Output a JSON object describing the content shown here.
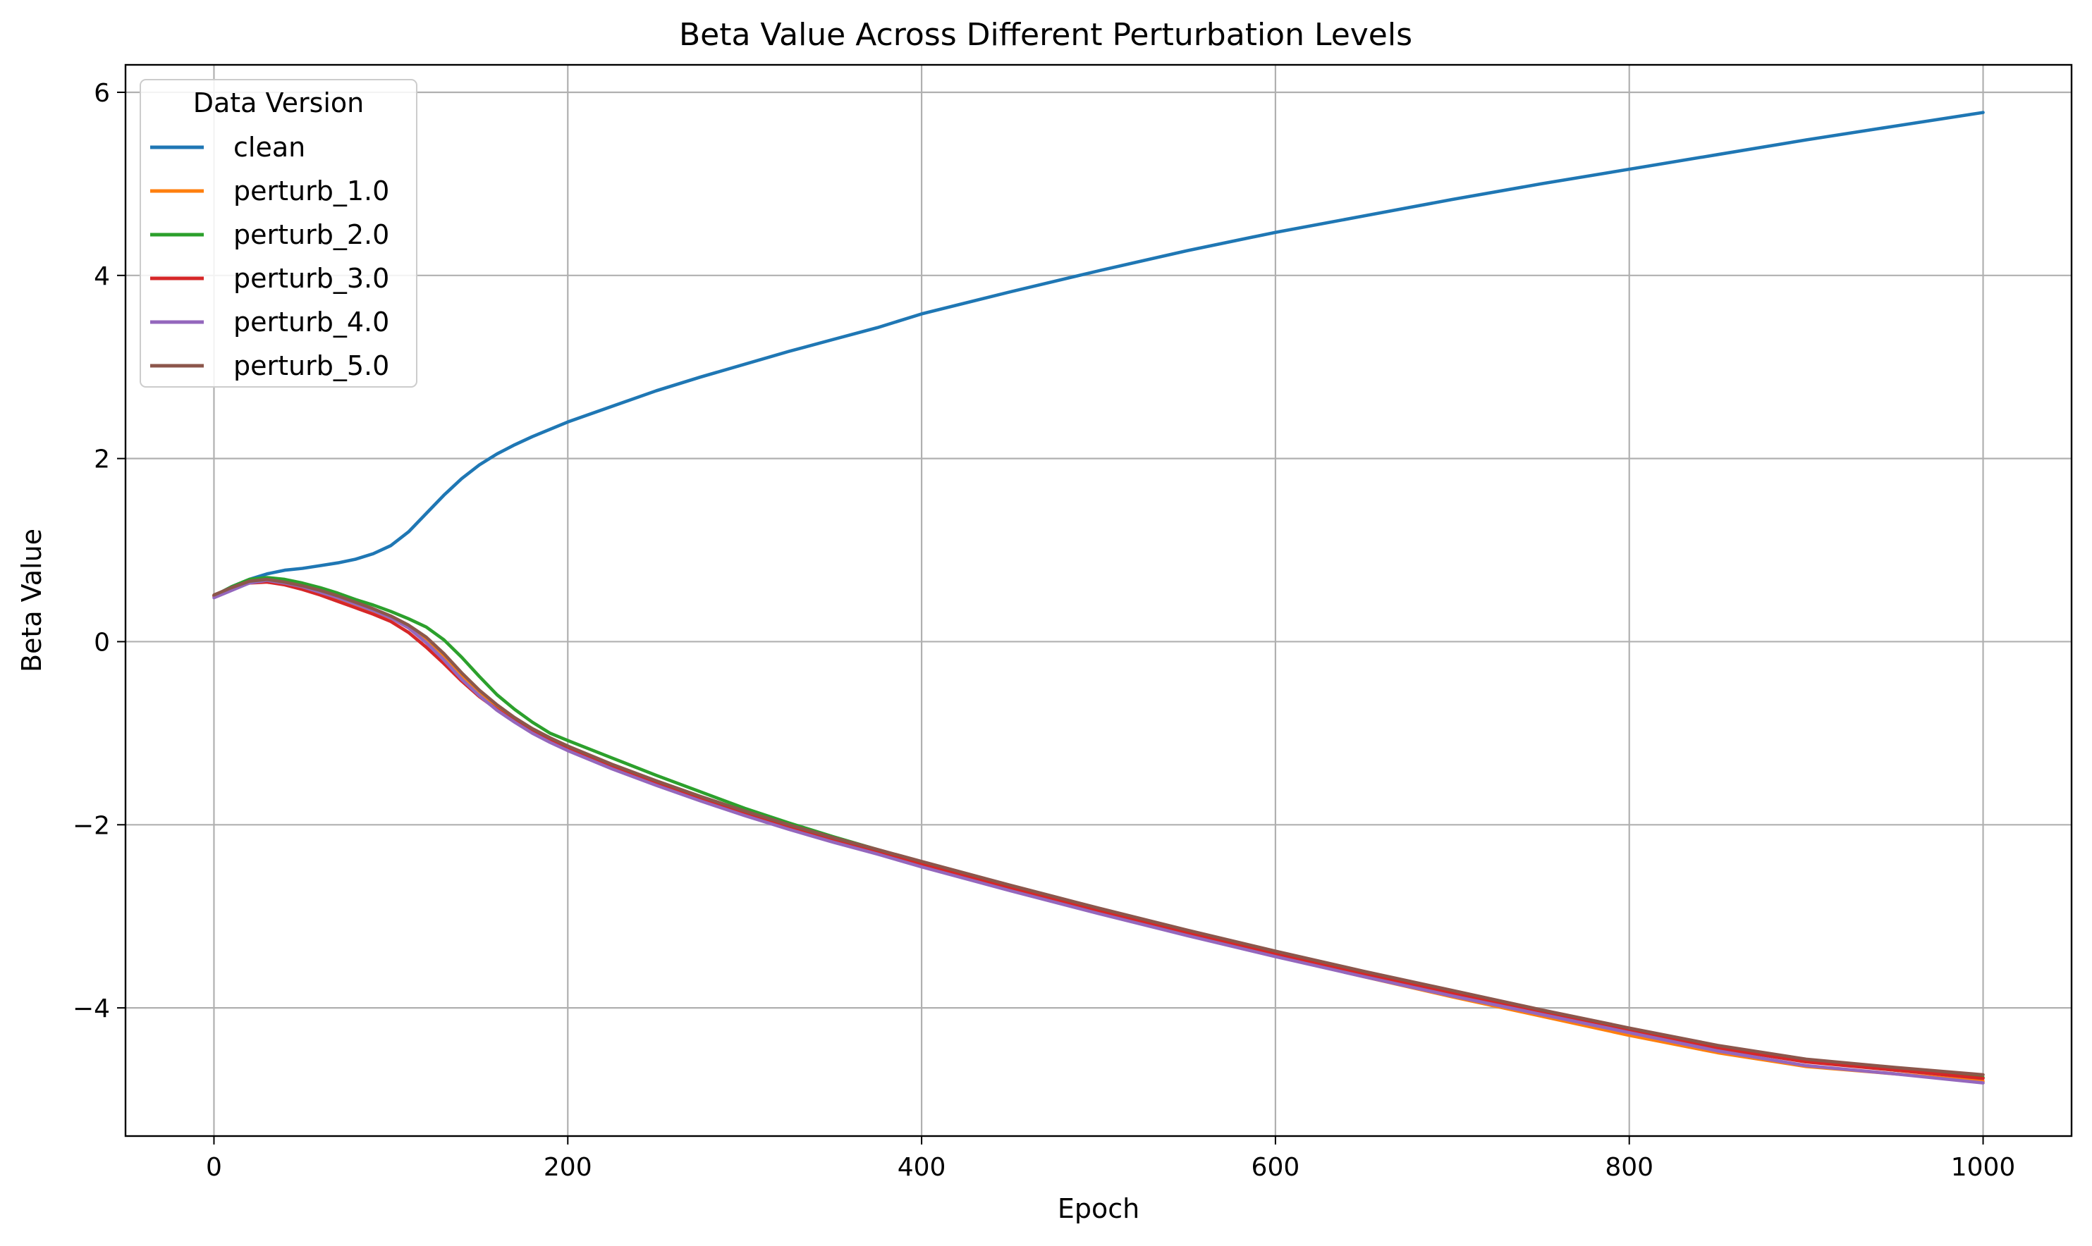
{
  "chart_data": {
    "type": "line",
    "title": "Beta Value Across Different Perturbation Levels",
    "xlabel": "Epoch",
    "ylabel": "Beta Value",
    "xlim": [
      -50,
      1050
    ],
    "ylim": [
      -5.4,
      6.3
    ],
    "x_ticks": [
      0,
      200,
      400,
      600,
      800,
      1000
    ],
    "y_ticks": [
      -4,
      -2,
      0,
      2,
      4,
      6
    ],
    "grid": true,
    "legend": {
      "title": "Data Version",
      "placement": "top-left"
    },
    "x": [
      0,
      10,
      20,
      30,
      40,
      50,
      60,
      70,
      80,
      90,
      100,
      110,
      120,
      130,
      140,
      150,
      160,
      170,
      180,
      190,
      200,
      225,
      250,
      275,
      300,
      325,
      350,
      375,
      400,
      450,
      500,
      550,
      600,
      650,
      700,
      750,
      800,
      850,
      900,
      950,
      1000
    ],
    "series": [
      {
        "name": "clean",
        "color": "#1f77b4",
        "values": [
          0.5,
          0.6,
          0.68,
          0.74,
          0.78,
          0.8,
          0.83,
          0.86,
          0.9,
          0.96,
          1.05,
          1.2,
          1.4,
          1.6,
          1.78,
          1.93,
          2.05,
          2.15,
          2.24,
          2.32,
          2.4,
          2.57,
          2.74,
          2.89,
          3.03,
          3.17,
          3.3,
          3.43,
          3.58,
          3.82,
          4.05,
          4.27,
          4.47,
          4.65,
          4.83,
          5.0,
          5.16,
          5.32,
          5.48,
          5.63,
          5.78
        ]
      },
      {
        "name": "perturb_1.0",
        "color": "#ff7f0e",
        "values": [
          0.5,
          0.58,
          0.66,
          0.68,
          0.65,
          0.6,
          0.54,
          0.47,
          0.4,
          0.33,
          0.26,
          0.16,
          0.03,
          -0.16,
          -0.38,
          -0.56,
          -0.72,
          -0.85,
          -0.97,
          -1.07,
          -1.16,
          -1.36,
          -1.54,
          -1.71,
          -1.87,
          -2.02,
          -2.16,
          -2.29,
          -2.43,
          -2.7,
          -2.95,
          -3.2,
          -3.43,
          -3.66,
          -3.88,
          -4.09,
          -4.3,
          -4.49,
          -4.64,
          -4.72,
          -4.8
        ]
      },
      {
        "name": "perturb_2.0",
        "color": "#2ca02c",
        "values": [
          0.5,
          0.6,
          0.68,
          0.7,
          0.68,
          0.64,
          0.59,
          0.53,
          0.46,
          0.4,
          0.33,
          0.25,
          0.16,
          0.02,
          -0.17,
          -0.38,
          -0.58,
          -0.74,
          -0.88,
          -1.0,
          -1.08,
          -1.27,
          -1.46,
          -1.64,
          -1.82,
          -1.98,
          -2.13,
          -2.27,
          -2.41,
          -2.67,
          -2.93,
          -3.17,
          -3.4,
          -3.62,
          -3.83,
          -4.04,
          -4.24,
          -4.44,
          -4.58,
          -4.68,
          -4.76
        ]
      },
      {
        "name": "perturb_3.0",
        "color": "#d62728",
        "values": [
          0.5,
          0.57,
          0.64,
          0.65,
          0.62,
          0.57,
          0.51,
          0.44,
          0.37,
          0.3,
          0.22,
          0.1,
          -0.06,
          -0.24,
          -0.43,
          -0.6,
          -0.74,
          -0.87,
          -0.98,
          -1.08,
          -1.17,
          -1.37,
          -1.55,
          -1.72,
          -1.88,
          -2.02,
          -2.16,
          -2.3,
          -2.43,
          -2.69,
          -2.94,
          -3.18,
          -3.41,
          -3.63,
          -3.84,
          -4.05,
          -4.25,
          -4.44,
          -4.59,
          -4.68,
          -4.77
        ]
      },
      {
        "name": "perturb_4.0",
        "color": "#9467bd",
        "values": [
          0.48,
          0.56,
          0.64,
          0.67,
          0.64,
          0.6,
          0.54,
          0.48,
          0.41,
          0.34,
          0.26,
          0.15,
          -0.01,
          -0.2,
          -0.41,
          -0.59,
          -0.75,
          -0.88,
          -1.0,
          -1.1,
          -1.19,
          -1.39,
          -1.57,
          -1.74,
          -1.9,
          -2.05,
          -2.19,
          -2.32,
          -2.46,
          -2.72,
          -2.97,
          -3.21,
          -3.44,
          -3.66,
          -3.87,
          -4.07,
          -4.27,
          -4.47,
          -4.63,
          -4.72,
          -4.82
        ]
      },
      {
        "name": "perturb_5.0",
        "color": "#8c564b",
        "values": [
          0.51,
          0.59,
          0.66,
          0.68,
          0.65,
          0.61,
          0.56,
          0.5,
          0.43,
          0.36,
          0.28,
          0.18,
          0.05,
          -0.13,
          -0.34,
          -0.53,
          -0.69,
          -0.83,
          -0.95,
          -1.05,
          -1.14,
          -1.34,
          -1.52,
          -1.69,
          -1.85,
          -2.0,
          -2.14,
          -2.27,
          -2.4,
          -2.66,
          -2.91,
          -3.15,
          -3.38,
          -3.6,
          -3.81,
          -4.02,
          -4.22,
          -4.41,
          -4.56,
          -4.65,
          -4.73
        ]
      }
    ]
  }
}
